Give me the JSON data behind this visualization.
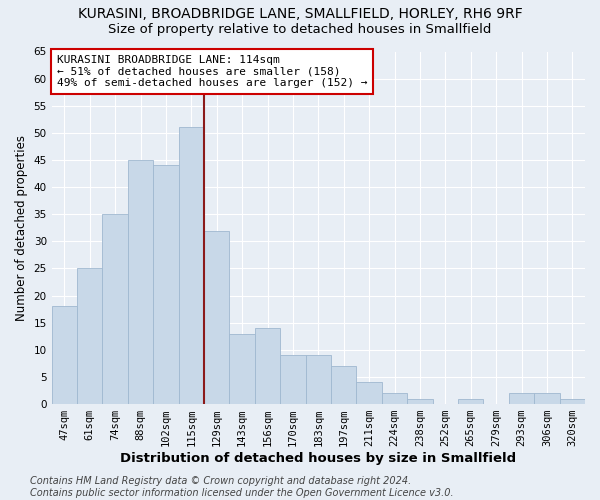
{
  "title": "KURASINI, BROADBRIDGE LANE, SMALLFIELD, HORLEY, RH6 9RF",
  "subtitle": "Size of property relative to detached houses in Smallfield",
  "xlabel": "Distribution of detached houses by size in Smallfield",
  "ylabel": "Number of detached properties",
  "categories": [
    "47sqm",
    "61sqm",
    "74sqm",
    "88sqm",
    "102sqm",
    "115sqm",
    "129sqm",
    "143sqm",
    "156sqm",
    "170sqm",
    "183sqm",
    "197sqm",
    "211sqm",
    "224sqm",
    "238sqm",
    "252sqm",
    "265sqm",
    "279sqm",
    "293sqm",
    "306sqm",
    "320sqm"
  ],
  "values": [
    18,
    25,
    35,
    45,
    44,
    51,
    32,
    13,
    14,
    9,
    9,
    7,
    4,
    2,
    1,
    0,
    1,
    0,
    2,
    2,
    1
  ],
  "bar_color": "#c8d8e8",
  "bar_edge_color": "#a0b8d0",
  "vline_x_index": 5,
  "vline_color": "#8b1a1a",
  "ylim": [
    0,
    65
  ],
  "yticks": [
    0,
    5,
    10,
    15,
    20,
    25,
    30,
    35,
    40,
    45,
    50,
    55,
    60,
    65
  ],
  "annotation_line1": "KURASINI BROADBRIDGE LANE: 114sqm",
  "annotation_line2": "← 51% of detached houses are smaller (158)",
  "annotation_line3": "49% of semi-detached houses are larger (152) →",
  "annotation_box_color": "#ffffff",
  "annotation_box_edge": "#cc0000",
  "footer_text": "Contains HM Land Registry data © Crown copyright and database right 2024.\nContains public sector information licensed under the Open Government Licence v3.0.",
  "background_color": "#e8eef5",
  "plot_bg_color": "#e8eef5",
  "grid_color": "#ffffff",
  "title_fontsize": 10,
  "subtitle_fontsize": 9.5,
  "xlabel_fontsize": 9.5,
  "ylabel_fontsize": 8.5,
  "tick_fontsize": 7.5,
  "annotation_fontsize": 8,
  "footer_fontsize": 7
}
